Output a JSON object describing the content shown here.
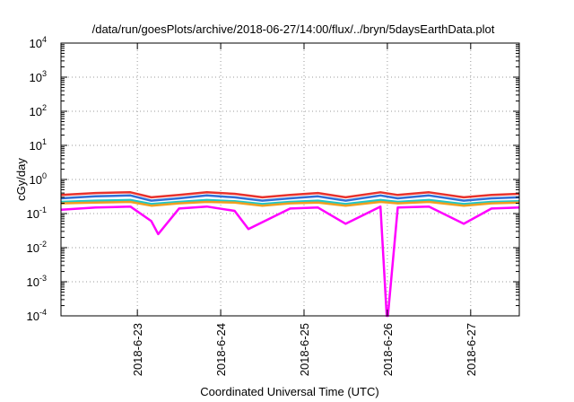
{
  "chart_data": {
    "type": "line",
    "title": "/data/run/goesPlots/archive/2018-06-27/14:00/flux/../bryn/5daysEarthData.plot",
    "xlabel": "Coordinated Universal Time (UTC)",
    "ylabel": "cGy/day",
    "yscale": "log",
    "ylim": [
      0.0001,
      10000
    ],
    "y_ticks": [
      {
        "base": "10",
        "exp": "-4",
        "value": 0.0001
      },
      {
        "base": "10",
        "exp": "-3",
        "value": 0.001
      },
      {
        "base": "10",
        "exp": "-2",
        "value": 0.01
      },
      {
        "base": "10",
        "exp": "-1",
        "value": 0.1
      },
      {
        "base": "10",
        "exp": "0",
        "value": 1
      },
      {
        "base": "10",
        "exp": "1",
        "value": 10
      },
      {
        "base": "10",
        "exp": "2",
        "value": 100
      },
      {
        "base": "10",
        "exp": "3",
        "value": 1000
      },
      {
        "base": "10",
        "exp": "4",
        "value": 10000
      }
    ],
    "xlim": [
      "2018-06-22T02:00",
      "2018-06-27T14:00"
    ],
    "x_ticks": [
      {
        "label": "2018-6-23",
        "value": "2018-06-23T00:00"
      },
      {
        "label": "2018-6-24",
        "value": "2018-06-24T00:00"
      },
      {
        "label": "2018-6-25",
        "value": "2018-06-25T00:00"
      },
      {
        "label": "2018-6-26",
        "value": "2018-06-26T00:00"
      },
      {
        "label": "2018-6-27",
        "value": "2018-06-27T00:00"
      }
    ],
    "grid": true,
    "legend": "none",
    "series": [
      {
        "color": "#e8322c",
        "x": [
          "2018-06-22T02:00",
          "2018-06-22T12:00",
          "2018-06-22T22:00",
          "2018-06-23T04:00",
          "2018-06-23T12:00",
          "2018-06-23T20:00",
          "2018-06-24T04:00",
          "2018-06-24T12:00",
          "2018-06-24T20:00",
          "2018-06-25T04:00",
          "2018-06-25T12:00",
          "2018-06-25T22:00",
          "2018-06-26T03:00",
          "2018-06-26T12:00",
          "2018-06-26T22:00",
          "2018-06-27T06:00",
          "2018-06-27T14:00"
        ],
        "y": [
          0.35,
          0.4,
          0.42,
          0.3,
          0.35,
          0.42,
          0.38,
          0.3,
          0.35,
          0.4,
          0.3,
          0.42,
          0.35,
          0.42,
          0.3,
          0.35,
          0.38
        ]
      },
      {
        "color": "#2f6fd6",
        "x": [
          "2018-06-22T02:00",
          "2018-06-22T12:00",
          "2018-06-22T22:00",
          "2018-06-23T04:00",
          "2018-06-23T12:00",
          "2018-06-23T20:00",
          "2018-06-24T04:00",
          "2018-06-24T12:00",
          "2018-06-24T20:00",
          "2018-06-25T04:00",
          "2018-06-25T12:00",
          "2018-06-25T22:00",
          "2018-06-26T03:00",
          "2018-06-26T12:00",
          "2018-06-26T22:00",
          "2018-06-27T06:00",
          "2018-06-27T14:00"
        ],
        "y": [
          0.28,
          0.32,
          0.34,
          0.24,
          0.28,
          0.34,
          0.3,
          0.24,
          0.28,
          0.32,
          0.24,
          0.34,
          0.28,
          0.34,
          0.24,
          0.28,
          0.3
        ]
      },
      {
        "color": "#1ec7c7",
        "x": [
          "2018-06-22T02:00",
          "2018-06-22T12:00",
          "2018-06-22T22:00",
          "2018-06-23T04:00",
          "2018-06-23T12:00",
          "2018-06-23T20:00",
          "2018-06-24T04:00",
          "2018-06-24T12:00",
          "2018-06-24T20:00",
          "2018-06-25T04:00",
          "2018-06-25T12:00",
          "2018-06-25T22:00",
          "2018-06-26T03:00",
          "2018-06-26T12:00",
          "2018-06-26T22:00",
          "2018-06-27T06:00",
          "2018-06-27T14:00"
        ],
        "y": [
          0.22,
          0.24,
          0.25,
          0.19,
          0.22,
          0.25,
          0.23,
          0.19,
          0.22,
          0.24,
          0.19,
          0.25,
          0.22,
          0.25,
          0.19,
          0.22,
          0.23
        ]
      },
      {
        "color": "#f0a020",
        "x": [
          "2018-06-22T02:00",
          "2018-06-22T12:00",
          "2018-06-22T22:00",
          "2018-06-23T04:00",
          "2018-06-23T12:00",
          "2018-06-23T20:00",
          "2018-06-24T04:00",
          "2018-06-24T12:00",
          "2018-06-24T20:00",
          "2018-06-25T04:00",
          "2018-06-25T12:00",
          "2018-06-25T22:00",
          "2018-06-26T03:00",
          "2018-06-26T12:00",
          "2018-06-26T22:00",
          "2018-06-27T06:00",
          "2018-06-27T14:00"
        ],
        "y": [
          0.2,
          0.21,
          0.22,
          0.17,
          0.2,
          0.22,
          0.21,
          0.17,
          0.2,
          0.21,
          0.17,
          0.22,
          0.2,
          0.22,
          0.17,
          0.2,
          0.21
        ]
      },
      {
        "color": "#ff00ff",
        "x": [
          "2018-06-22T02:00",
          "2018-06-22T12:00",
          "2018-06-22T22:00",
          "2018-06-23T04:00",
          "2018-06-23T06:00",
          "2018-06-23T12:00",
          "2018-06-23T20:00",
          "2018-06-24T04:00",
          "2018-06-24T08:00",
          "2018-06-24T20:00",
          "2018-06-25T04:00",
          "2018-06-25T12:00",
          "2018-06-25T22:00",
          "2018-06-25T23:50",
          "2018-06-26T00:00",
          "2018-06-26T00:10",
          "2018-06-26T03:00",
          "2018-06-26T12:00",
          "2018-06-26T22:00",
          "2018-06-27T06:00",
          "2018-06-27T14:00"
        ],
        "y": [
          0.13,
          0.15,
          0.16,
          0.06,
          0.025,
          0.14,
          0.16,
          0.12,
          0.035,
          0.14,
          0.15,
          0.05,
          0.16,
          0.0001,
          0.0001,
          0.0001,
          0.15,
          0.16,
          0.05,
          0.14,
          0.15
        ]
      }
    ]
  }
}
